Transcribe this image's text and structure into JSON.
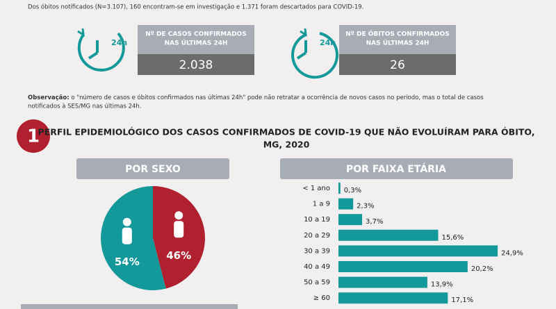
{
  "intro": "Dos óbitos notificados (N=3.107), 160 encontram-se em investigação e 1.371 foram descartados para COVID-19.",
  "cards": [
    {
      "icon": "24h",
      "label_lines": [
        "Nº DE CASOS  CONFIRMADOS",
        "NAS ÚLTIMAS 24H"
      ],
      "value": "2.038"
    },
    {
      "icon": "24h",
      "label_lines": [
        "Nº DE ÓBITOS CONFIRMADOS",
        "NAS ÚLTIMAS 24H"
      ],
      "value": 26
    }
  ],
  "note": {
    "bold": "Observação:",
    "lines": [
      " o \"número de casos e óbitos confirmados nas últimas 24h\" pode não retratar a ocorrência de novos casos no período, mas o total de casos",
      "notificados à SES/MG nas últimas 24h."
    ]
  },
  "section": {
    "number": 1,
    "title_lines": [
      "PERFIL EPIDEMIOLÓGICO DOS CASOS CONFIRMADOS DE COVID-19 QUE NÃO EVOLUÍRAM PARA ÓBITO,",
      "MG, 2020"
    ]
  },
  "chart_data": [
    {
      "type": "pie",
      "title": "POR SEXO",
      "values": [
        54,
        46
      ],
      "value_labels": [
        "54%",
        "46%"
      ],
      "colors": [
        "#14999a",
        "#b1202f"
      ]
    },
    {
      "type": "hbar",
      "title": "POR FAIXA ETÁRIA",
      "categories": [
        "< 1 ano",
        "1 a 9",
        "10 a 19",
        "20 a 29",
        "30 a 39",
        "40 a 49",
        "50 a 59",
        "≥ 60"
      ],
      "values": [
        0.3,
        2.3,
        3.7,
        15.6,
        24.9,
        20.2,
        13.9,
        17.1
      ],
      "value_labels": [
        "0,3%",
        "2,3%",
        "3,7%",
        "15,6%",
        "24,9%",
        "20,2%",
        "13,9%",
        "17,1%"
      ],
      "color": "#14999a"
    }
  ]
}
